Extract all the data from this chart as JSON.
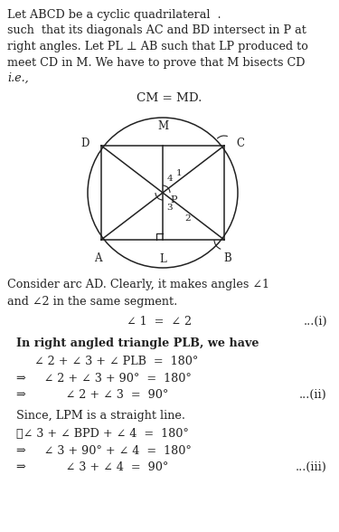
{
  "bg_color": "#ffffff",
  "text_color": "#111111",
  "intro_lines": [
    "Let ABCD be a cyclic quadrilateral  .",
    "such  that its diagonals AC and BD intersect in P at",
    "right angles. Let PL ⊥ AB such that LP produced to",
    "meet CD in M. We have to prove that M bisects CD",
    "i.e.,"
  ],
  "cm_md_line": "CM = MD.",
  "consider_line1": "Consider arc AD. Clearly, it makes angles ∠1",
  "consider_line2": "and ∠2 in the same segment.",
  "eq1_left": "∠ 1  =  ∠ 2",
  "eq1_ref": "...(i)",
  "bold_line": "In right angled triangle PLB, we have",
  "eq2a": "∠ 2 + ∠ 3 + ∠ PLB  =  180°",
  "eq2b": "⇒     ∠ 2 + ∠ 3 + 90°  =  180°",
  "eq2c": "⇒           ∠ 2 + ∠ 3  =  90°",
  "eq2c_ref": "...(ii)",
  "since_line": "Since, LPM is a straight line.",
  "eq3a": "∴∠ 3 + ∠ BPD + ∠ 4  =  180°",
  "eq3b": "⇒     ∠ 3 + 90° + ∠ 4  =  180°",
  "eq3c": "⇒           ∠ 3 + ∠ 4  =  90°",
  "eq3c_ref": "...(iii)"
}
